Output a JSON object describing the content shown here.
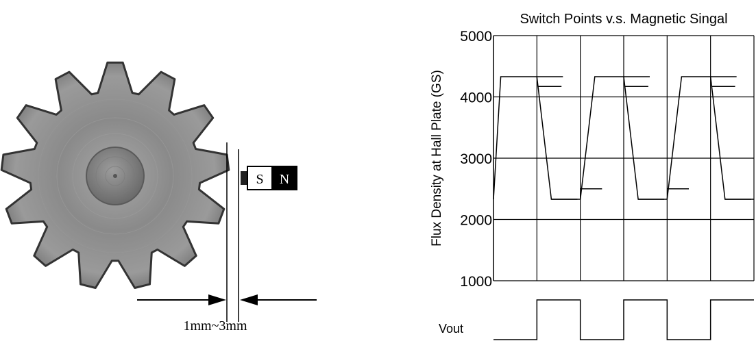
{
  "diagram": {
    "magnet": {
      "south_label": "S",
      "north_label": "N"
    },
    "gap_label": {
      "min": "1mm",
      "separator": "~",
      "max": "3mm"
    }
  },
  "chart_data": {
    "type": "line",
    "title": "Switch Points v.s. Magnetic Singal",
    "ylabel": "Flux Density at Hall Plate (GS)",
    "xlabel": "",
    "ylim": [
      1000,
      5000
    ],
    "y_ticks": [
      "1000",
      "2000",
      "3000",
      "4000",
      "5000"
    ],
    "grid": true,
    "output_label": "Vout",
    "flux_waveform": {
      "high": 4330,
      "low": 2330,
      "points": [
        [
          0,
          2330
        ],
        [
          0.5,
          4330
        ],
        [
          3,
          4330
        ],
        [
          4,
          2330
        ],
        [
          6,
          2330
        ],
        [
          7,
          4330
        ],
        [
          9,
          4330
        ],
        [
          10,
          2330
        ],
        [
          12,
          2330
        ],
        [
          13,
          4330
        ],
        [
          15,
          4330
        ],
        [
          16,
          2330
        ],
        [
          18,
          2330
        ]
      ]
    },
    "switch_points": {
      "operate": 4170,
      "release": 2500
    },
    "vout_levels": [
      0,
      1,
      0,
      1,
      0,
      1
    ]
  }
}
